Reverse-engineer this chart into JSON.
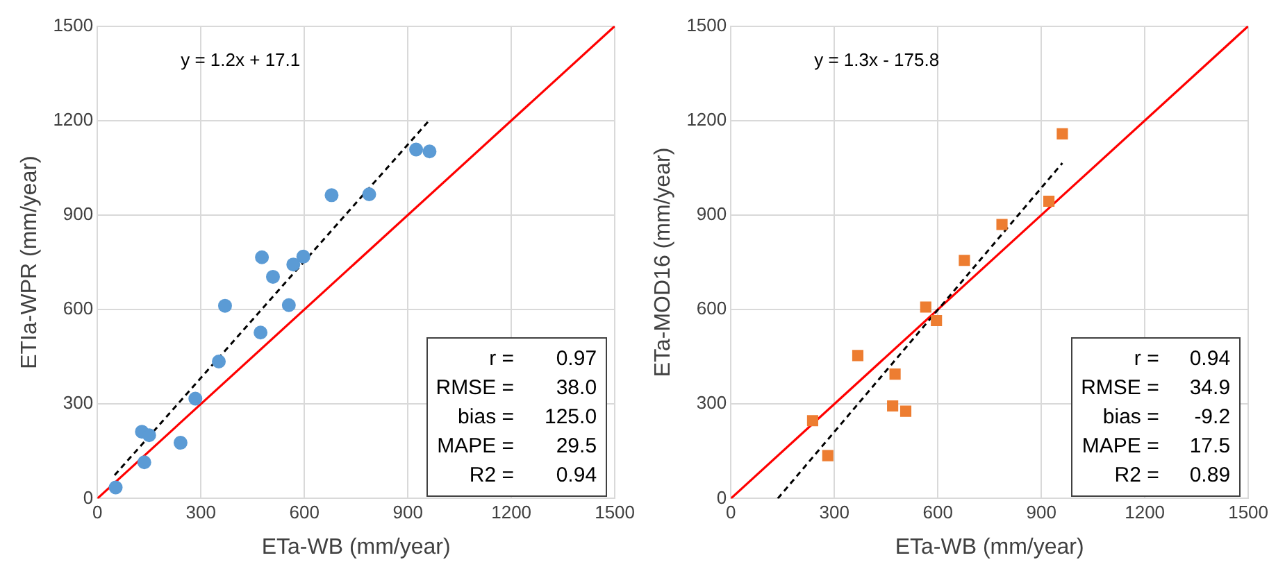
{
  "chart_data": [
    {
      "type": "scatter",
      "xlabel": "ETa-WB (mm/year)",
      "ylabel": "ETIa-WPR (mm/year)",
      "xlim": [
        0,
        1500
      ],
      "ylim": [
        0,
        1500
      ],
      "xticks": [
        0,
        300,
        600,
        900,
        1200,
        1500
      ],
      "yticks": [
        0,
        300,
        600,
        900,
        1200,
        1500
      ],
      "grid": true,
      "legend": false,
      "annotations": [
        "y = 1.2x + 17.1",
        "r = 0.97",
        "RMSE = 38.0",
        "bias = 125.0",
        "MAPE = 29.5",
        "R2 = 0.94"
      ],
      "series": [
        {
          "marker": "circle",
          "color": "#5b9bd5",
          "x": [
            53,
            129,
            150,
            136,
            241,
            284,
            352,
            370,
            473,
            477,
            509,
            555,
            568,
            597,
            679,
            788,
            924,
            963
          ],
          "values": [
            35,
            212,
            201,
            115,
            177,
            317,
            435,
            612,
            527,
            766,
            704,
            614,
            743,
            768,
            963,
            966,
            1108,
            1102
          ]
        },
        {
          "type": "line",
          "marker": "none",
          "color": "#000000",
          "line_style": "dashed",
          "x": [
            50,
            960
          ],
          "values": [
            74,
            1198
          ]
        },
        {
          "type": "line",
          "marker": "none",
          "color": "#ff0000",
          "line_style": "solid",
          "x": [
            0,
            1500
          ],
          "values": [
            0,
            1500
          ]
        }
      ]
    },
    {
      "type": "scatter",
      "xlabel": "ETa-WB (mm/year)",
      "ylabel": "ETa-MOD16 (mm/year)",
      "xlim": [
        0,
        1500
      ],
      "ylim": [
        0,
        1500
      ],
      "xticks": [
        0,
        300,
        600,
        900,
        1200,
        1500
      ],
      "yticks": [
        0,
        300,
        600,
        900,
        1200,
        1500
      ],
      "grid": true,
      "legend": false,
      "annotations": [
        "y = 1.3x - 175.8",
        "r = 0.94",
        "RMSE = 34.9",
        "bias = -9.2",
        "MAPE = 17.5",
        "R2 = 0.89"
      ],
      "series": [
        {
          "marker": "square",
          "color": "#ed7d31",
          "x": [
            237,
            281,
            368,
            469,
            476,
            507,
            565,
            596,
            677,
            786,
            922,
            961
          ],
          "values": [
            247,
            136,
            454,
            294,
            395,
            277,
            608,
            565,
            756,
            870,
            944,
            1158
          ]
        },
        {
          "type": "line",
          "marker": "none",
          "color": "#000000",
          "line_style": "dashed",
          "x": [
            136,
            961
          ],
          "values": [
            0,
            1065
          ]
        },
        {
          "type": "line",
          "marker": "none",
          "color": "#ff0000",
          "line_style": "solid",
          "x": [
            0,
            1500
          ],
          "values": [
            0,
            1500
          ]
        }
      ]
    }
  ]
}
